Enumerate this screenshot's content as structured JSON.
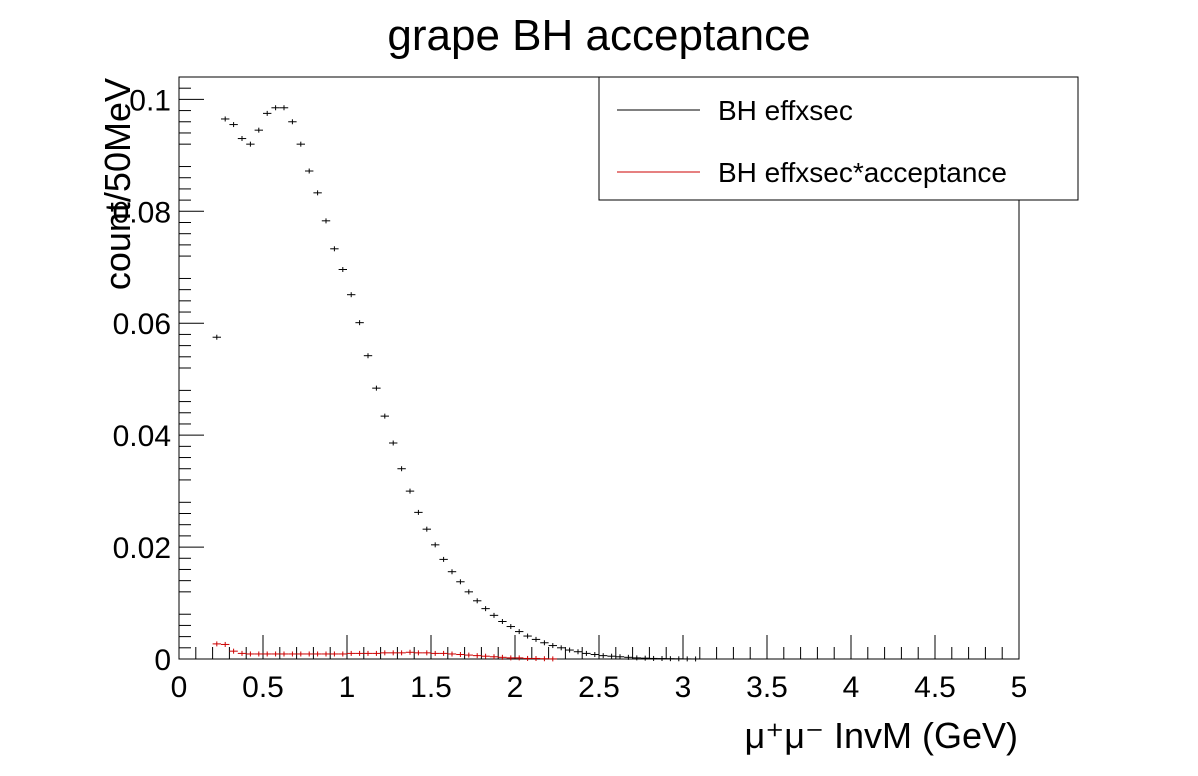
{
  "chart_data": {
    "type": "scatter",
    "title": "grape BH acceptance",
    "xlabel": "μ⁺μ⁻ InvM (GeV)",
    "ylabel": "count/50MeV",
    "xlim": [
      0,
      5
    ],
    "ylim": [
      0,
      0.104
    ],
    "bin_width": 0.05,
    "x_ticks": [
      "0",
      "0.5",
      "1",
      "1.5",
      "2",
      "2.5",
      "3",
      "3.5",
      "4",
      "4.5",
      "5"
    ],
    "y_ticks": [
      "0",
      "0.02",
      "0.04",
      "0.06",
      "0.08",
      "0.1"
    ],
    "grid": false,
    "legend_position": "top-right",
    "series": [
      {
        "name": "BH effxsec",
        "color": "#000000",
        "x": [
          0.225,
          0.275,
          0.325,
          0.375,
          0.425,
          0.475,
          0.525,
          0.575,
          0.625,
          0.675,
          0.725,
          0.775,
          0.825,
          0.875,
          0.925,
          0.975,
          1.025,
          1.075,
          1.125,
          1.175,
          1.225,
          1.275,
          1.325,
          1.375,
          1.425,
          1.475,
          1.525,
          1.575,
          1.625,
          1.675,
          1.725,
          1.775,
          1.825,
          1.875,
          1.925,
          1.975,
          2.025,
          2.075,
          2.125,
          2.175,
          2.225,
          2.275,
          2.325,
          2.375,
          2.425,
          2.475,
          2.525,
          2.575,
          2.625,
          2.675,
          2.725,
          2.775,
          2.825,
          2.875,
          2.925,
          2.975,
          3.025,
          3.075
        ],
        "y": [
          0.0575,
          0.0965,
          0.0955,
          0.093,
          0.092,
          0.0945,
          0.0975,
          0.0985,
          0.0985,
          0.096,
          0.092,
          0.0872,
          0.0833,
          0.0783,
          0.0733,
          0.0696,
          0.0651,
          0.0601,
          0.0542,
          0.0484,
          0.0434,
          0.0386,
          0.034,
          0.03,
          0.0262,
          0.0232,
          0.0204,
          0.0178,
          0.0156,
          0.0138,
          0.012,
          0.0104,
          0.009,
          0.0078,
          0.0067,
          0.0058,
          0.0049,
          0.0041,
          0.0035,
          0.0029,
          0.0024,
          0.002,
          0.0016,
          0.0013,
          0.001,
          0.0008,
          0.0006,
          0.0005,
          0.0004,
          0.0003,
          0.0002,
          0.00015,
          0.0001,
          8e-05,
          6e-05,
          4e-05,
          2e-05,
          1e-05
        ]
      },
      {
        "name": "BH effxsec*acceptance",
        "color": "#cc0000",
        "x": [
          0.225,
          0.275,
          0.325,
          0.375,
          0.425,
          0.475,
          0.525,
          0.575,
          0.625,
          0.675,
          0.725,
          0.775,
          0.825,
          0.875,
          0.925,
          0.975,
          1.025,
          1.075,
          1.125,
          1.175,
          1.225,
          1.275,
          1.325,
          1.375,
          1.425,
          1.475,
          1.525,
          1.575,
          1.625,
          1.675,
          1.725,
          1.775,
          1.825,
          1.875,
          1.925,
          1.975,
          2.025,
          2.075,
          2.125,
          2.175,
          2.225
        ],
        "y": [
          0.0027,
          0.0026,
          0.0014,
          0.001,
          0.0009,
          0.0009,
          0.0009,
          0.0009,
          0.0009,
          0.0009,
          0.0009,
          0.0009,
          0.0009,
          0.0009,
          0.0009,
          0.0009,
          0.001,
          0.001,
          0.001,
          0.001,
          0.0011,
          0.0011,
          0.0011,
          0.0012,
          0.0011,
          0.0011,
          0.001,
          0.001,
          0.0009,
          0.0008,
          0.0007,
          0.0006,
          0.0005,
          0.0004,
          0.0003,
          0.0002,
          0.0002,
          0.0001,
          0.0001,
          5e-05,
          2e-05
        ]
      }
    ]
  }
}
